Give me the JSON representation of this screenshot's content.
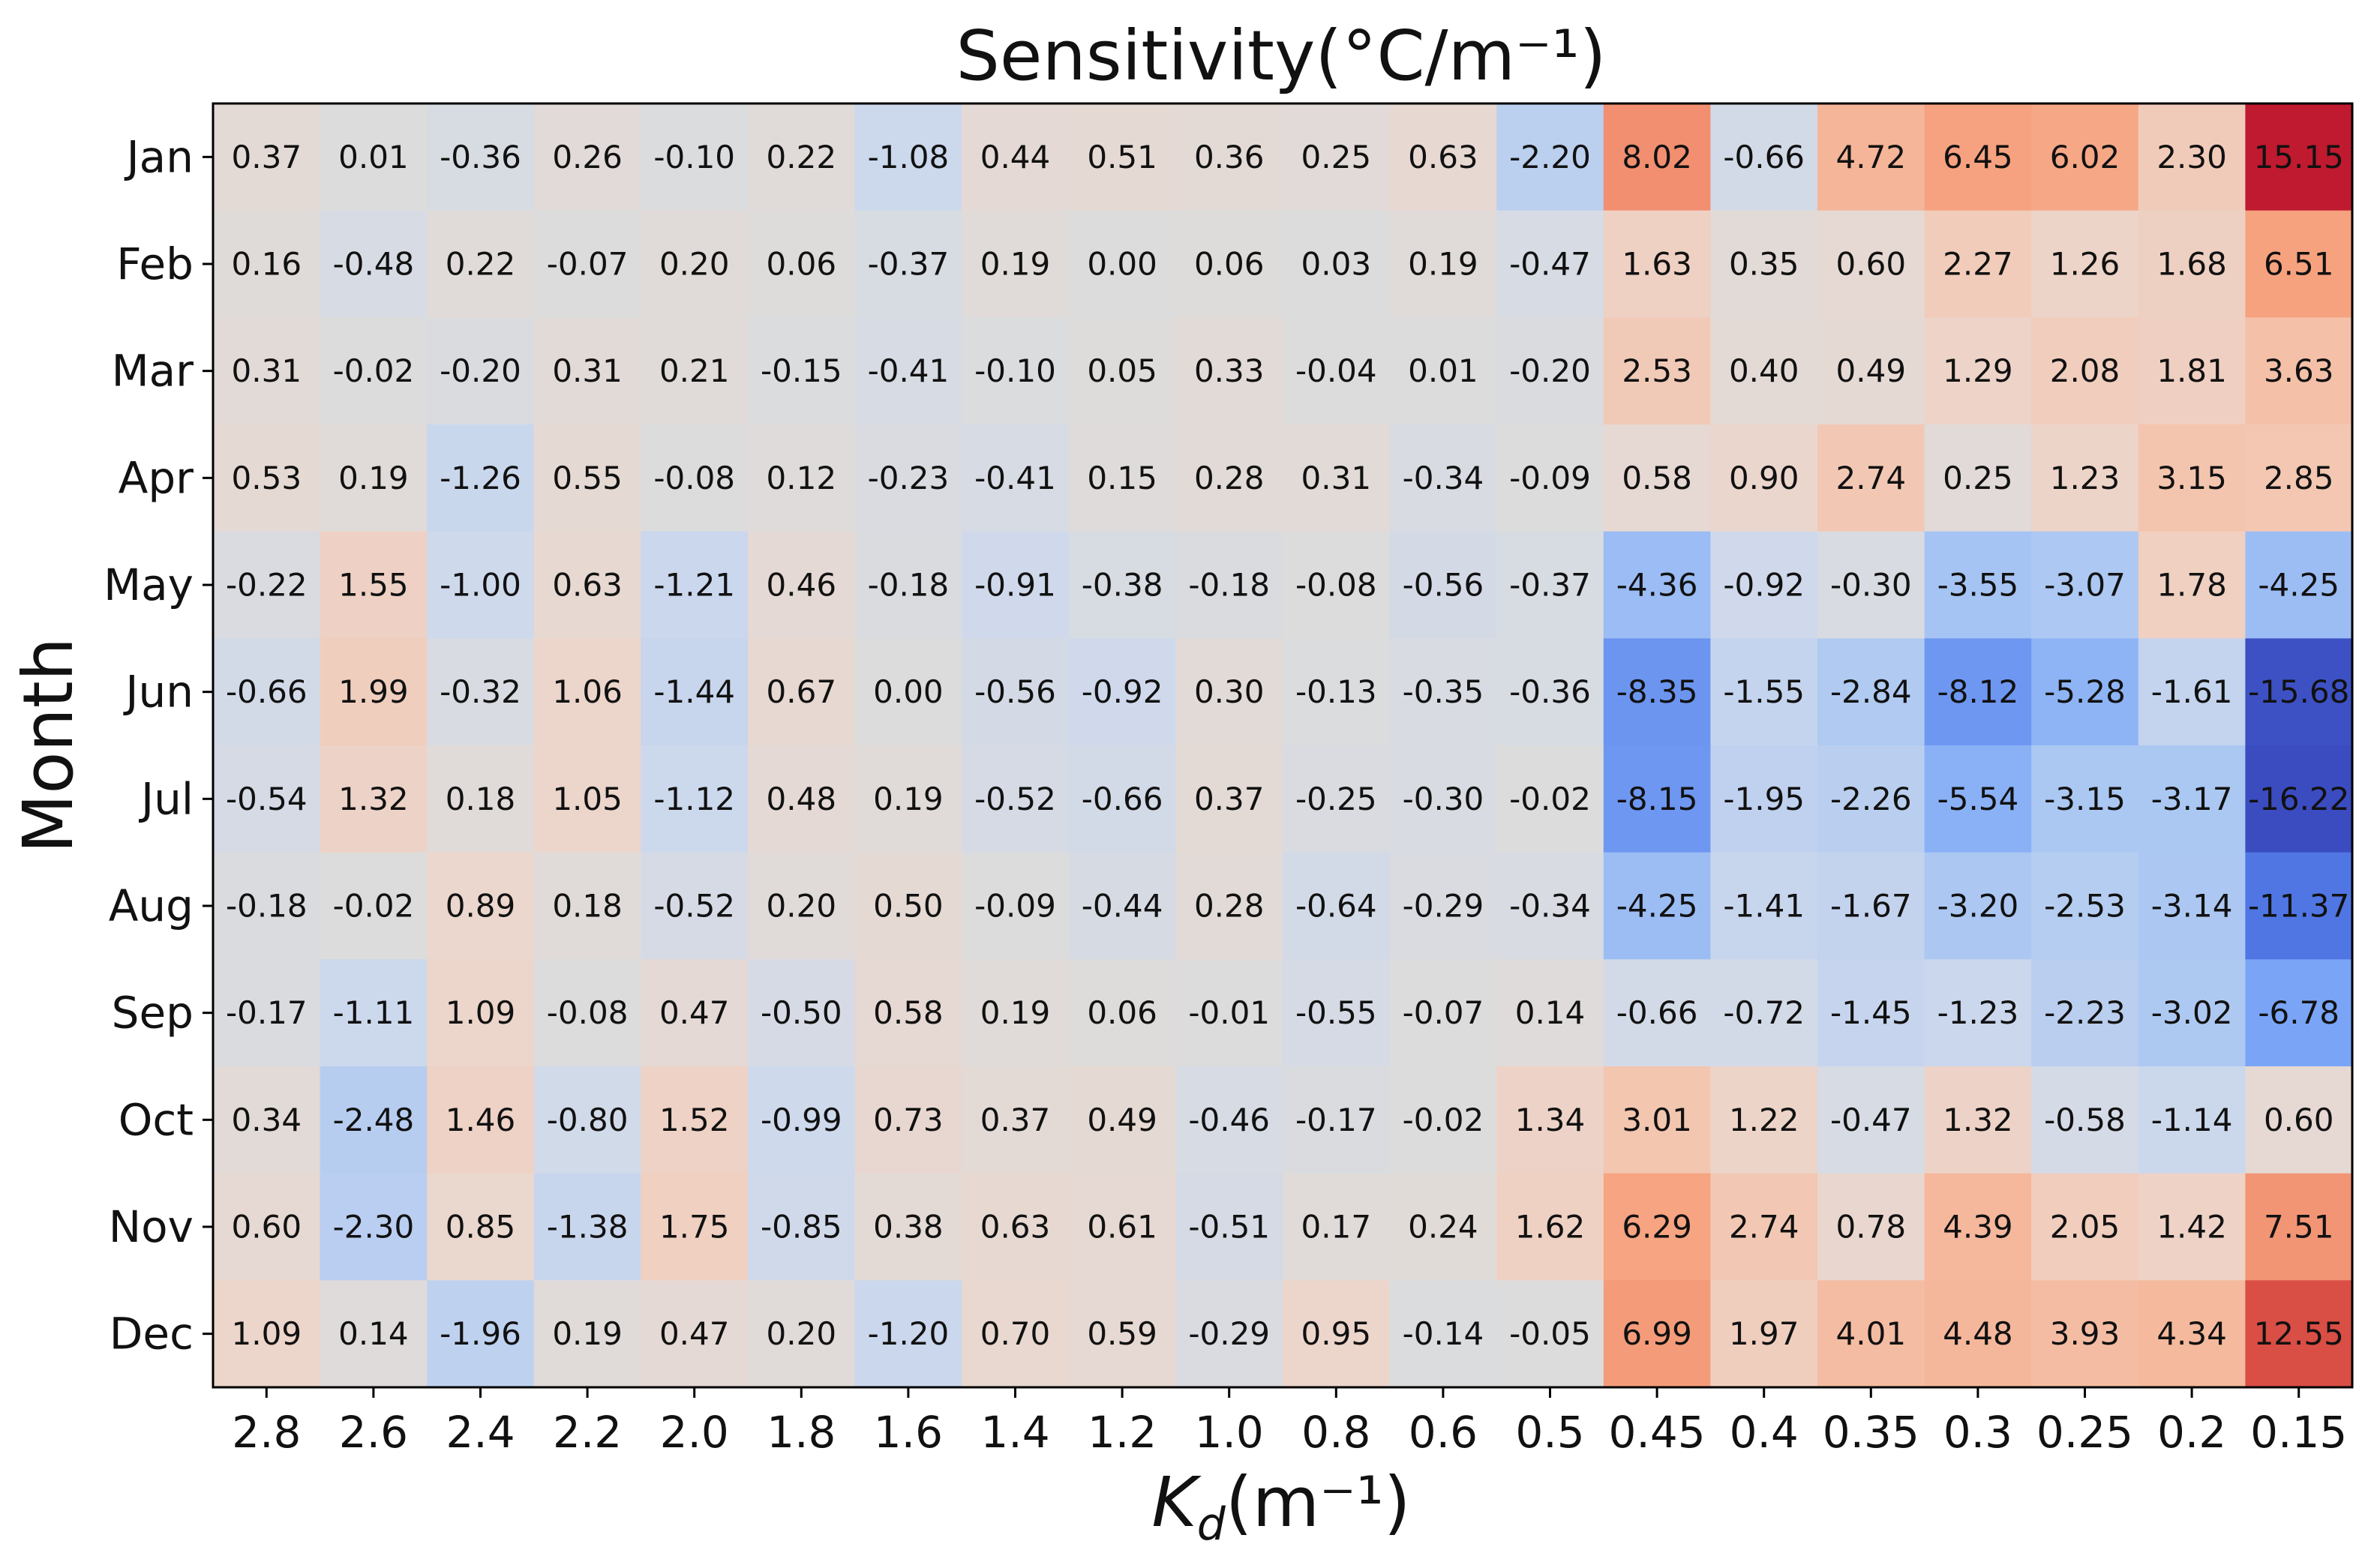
{
  "chart_data": {
    "type": "heatmap",
    "title": "Sensitivity(°C/m⁻¹)",
    "xlabel": "Kd(m⁻¹)",
    "xlabel_parts": {
      "main": "K",
      "sub": "d",
      "unit": "(m⁻¹)"
    },
    "ylabel": "Month",
    "x_categories": [
      "2.8",
      "2.6",
      "2.4",
      "2.2",
      "2.0",
      "1.8",
      "1.6",
      "1.4",
      "1.2",
      "1.0",
      "0.8",
      "0.6",
      "0.5",
      "0.45",
      "0.4",
      "0.35",
      "0.3",
      "0.25",
      "0.2",
      "0.15"
    ],
    "y_categories": [
      "Jan",
      "Feb",
      "Mar",
      "Apr",
      "May",
      "Jun",
      "Jul",
      "Aug",
      "Sep",
      "Oct",
      "Nov",
      "Dec"
    ],
    "values": [
      [
        "0.37",
        "0.01",
        "-0.36",
        "0.26",
        "-0.10",
        "0.22",
        "-1.08",
        "0.44",
        "0.51",
        "0.36",
        "0.25",
        "0.63",
        "-2.20",
        "8.02",
        "-0.66",
        "4.72",
        "6.45",
        "6.02",
        "2.30",
        "15.15"
      ],
      [
        "0.16",
        "-0.48",
        "0.22",
        "-0.07",
        "0.20",
        "0.06",
        "-0.37",
        "0.19",
        "0.00",
        "0.06",
        "0.03",
        "0.19",
        "-0.47",
        "1.63",
        "0.35",
        "0.60",
        "2.27",
        "1.26",
        "1.68",
        "6.51"
      ],
      [
        "0.31",
        "-0.02",
        "-0.20",
        "0.31",
        "0.21",
        "-0.15",
        "-0.41",
        "-0.10",
        "0.05",
        "0.33",
        "-0.04",
        "0.01",
        "-0.20",
        "2.53",
        "0.40",
        "0.49",
        "1.29",
        "2.08",
        "1.81",
        "3.63"
      ],
      [
        "0.53",
        "0.19",
        "-1.26",
        "0.55",
        "-0.08",
        "0.12",
        "-0.23",
        "-0.41",
        "0.15",
        "0.28",
        "0.31",
        "-0.34",
        "-0.09",
        "0.58",
        "0.90",
        "2.74",
        "0.25",
        "1.23",
        "3.15",
        "2.85"
      ],
      [
        "-0.22",
        "1.55",
        "-1.00",
        "0.63",
        "-1.21",
        "0.46",
        "-0.18",
        "-0.91",
        "-0.38",
        "-0.18",
        "-0.08",
        "-0.56",
        "-0.37",
        "-4.36",
        "-0.92",
        "-0.30",
        "-3.55",
        "-3.07",
        "1.78",
        "-4.25"
      ],
      [
        "-0.66",
        "1.99",
        "-0.32",
        "1.06",
        "-1.44",
        "0.67",
        "0.00",
        "-0.56",
        "-0.92",
        "0.30",
        "-0.13",
        "-0.35",
        "-0.36",
        "-8.35",
        "-1.55",
        "-2.84",
        "-8.12",
        "-5.28",
        "-1.61",
        "-15.68"
      ],
      [
        "-0.54",
        "1.32",
        "0.18",
        "1.05",
        "-1.12",
        "0.48",
        "0.19",
        "-0.52",
        "-0.66",
        "0.37",
        "-0.25",
        "-0.30",
        "-0.02",
        "-8.15",
        "-1.95",
        "-2.26",
        "-5.54",
        "-3.15",
        "-3.17",
        "-16.22"
      ],
      [
        "-0.18",
        "-0.02",
        "0.89",
        "0.18",
        "-0.52",
        "0.20",
        "0.50",
        "-0.09",
        "-0.44",
        "0.28",
        "-0.64",
        "-0.29",
        "-0.34",
        "-4.25",
        "-1.41",
        "-1.67",
        "-3.20",
        "-2.53",
        "-3.14",
        "-11.37"
      ],
      [
        "-0.17",
        "-1.11",
        "1.09",
        "-0.08",
        "0.47",
        "-0.50",
        "0.58",
        "0.19",
        "0.06",
        "-0.01",
        "-0.55",
        "-0.07",
        "0.14",
        "-0.66",
        "-0.72",
        "-1.45",
        "-1.23",
        "-2.23",
        "-3.02",
        "-6.78"
      ],
      [
        "0.34",
        "-2.48",
        "1.46",
        "-0.80",
        "1.52",
        "-0.99",
        "0.73",
        "0.37",
        "0.49",
        "-0.46",
        "-0.17",
        "-0.02",
        "1.34",
        "3.01",
        "1.22",
        "-0.47",
        "1.32",
        "-0.58",
        "-1.14",
        "0.60"
      ],
      [
        "0.60",
        "-2.30",
        "0.85",
        "-1.38",
        "1.75",
        "-0.85",
        "0.38",
        "0.63",
        "0.61",
        "-0.51",
        "0.17",
        "0.24",
        "1.62",
        "6.29",
        "2.74",
        "0.78",
        "4.39",
        "2.05",
        "1.42",
        "7.51"
      ],
      [
        "1.09",
        "0.14",
        "-1.96",
        "0.19",
        "0.47",
        "0.20",
        "-1.20",
        "0.70",
        "0.59",
        "-0.29",
        "0.95",
        "-0.14",
        "-0.05",
        "6.99",
        "1.97",
        "4.01",
        "4.48",
        "3.93",
        "4.34",
        "12.55"
      ]
    ],
    "color_range": [
      -16.22,
      16.22
    ],
    "colormap": "coolwarm",
    "legend": "none",
    "grid": false
  }
}
